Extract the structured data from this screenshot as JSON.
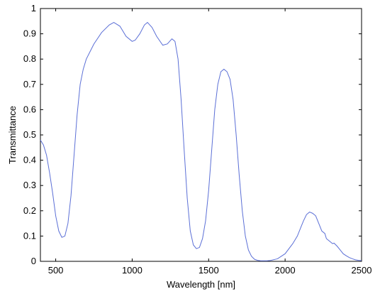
{
  "chart_data": {
    "type": "line",
    "title": "",
    "xlabel": "Wavelength [nm]",
    "ylabel": "Transmittance",
    "xlim": [
      400,
      2500
    ],
    "ylim": [
      0,
      1
    ],
    "x_ticks": [
      500,
      1000,
      1500,
      2000,
      2500
    ],
    "y_ticks": [
      0,
      0.1,
      0.2,
      0.3,
      0.4,
      0.5,
      0.6,
      0.7,
      0.8,
      0.9,
      1
    ],
    "x_tick_labels": [
      "500",
      "1000",
      "1500",
      "2000",
      "2500"
    ],
    "y_tick_labels": [
      "0",
      "0.1",
      "0.2",
      "0.3",
      "0.4",
      "0.5",
      "0.6",
      "0.7",
      "0.8",
      "0.9",
      "1"
    ],
    "grid": false,
    "line_color": "#5b6fd6",
    "series": [
      {
        "x": [
          400,
          420,
          440,
          460,
          480,
          500,
          520,
          540,
          560,
          580,
          600,
          620,
          640,
          660,
          680,
          700,
          750,
          800,
          850,
          880,
          920,
          960,
          1000,
          1020,
          1050,
          1080,
          1100,
          1130,
          1160,
          1200,
          1230,
          1260,
          1280,
          1300,
          1320,
          1340,
          1360,
          1380,
          1400,
          1420,
          1440,
          1460,
          1480,
          1500,
          1520,
          1540,
          1560,
          1580,
          1600,
          1620,
          1640,
          1660,
          1680,
          1700,
          1720,
          1740,
          1760,
          1780,
          1800,
          1820,
          1840,
          1860,
          1880,
          1900,
          1950,
          2000,
          2050,
          2080,
          2100,
          2120,
          2140,
          2160,
          2180,
          2200,
          2220,
          2240,
          2260,
          2270,
          2280,
          2290,
          2300,
          2310,
          2320,
          2340,
          2360,
          2380,
          2400,
          2420,
          2440,
          2460,
          2480,
          2500
        ],
        "y": [
          0.48,
          0.46,
          0.42,
          0.35,
          0.27,
          0.18,
          0.12,
          0.095,
          0.1,
          0.15,
          0.26,
          0.42,
          0.58,
          0.7,
          0.76,
          0.8,
          0.86,
          0.905,
          0.935,
          0.945,
          0.93,
          0.89,
          0.87,
          0.875,
          0.9,
          0.935,
          0.945,
          0.925,
          0.89,
          0.855,
          0.86,
          0.88,
          0.87,
          0.8,
          0.64,
          0.44,
          0.25,
          0.12,
          0.065,
          0.05,
          0.055,
          0.09,
          0.16,
          0.28,
          0.44,
          0.6,
          0.7,
          0.75,
          0.76,
          0.75,
          0.72,
          0.64,
          0.5,
          0.34,
          0.2,
          0.1,
          0.045,
          0.02,
          0.008,
          0.004,
          0.002,
          0.002,
          0.002,
          0.003,
          0.01,
          0.03,
          0.07,
          0.1,
          0.13,
          0.16,
          0.185,
          0.195,
          0.19,
          0.18,
          0.15,
          0.12,
          0.11,
          0.09,
          0.085,
          0.08,
          0.075,
          0.07,
          0.072,
          0.06,
          0.045,
          0.03,
          0.022,
          0.015,
          0.01,
          0.006,
          0.004,
          0.003
        ]
      }
    ]
  }
}
